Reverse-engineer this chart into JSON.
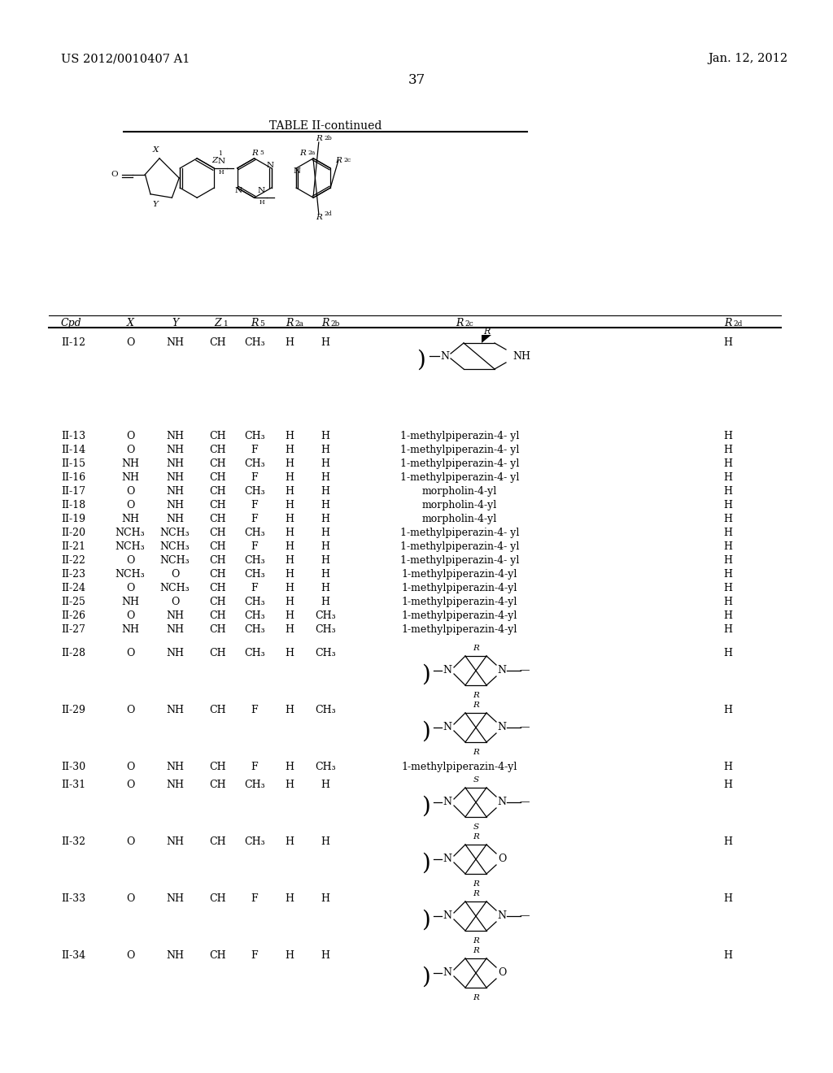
{
  "header_left": "US 2012/0010407 A1",
  "header_right": "Jan. 12, 2012",
  "page_number": "37",
  "table_title": "TABLE II-continued",
  "bg_color": "#ffffff",
  "text_color": "#000000",
  "rows_text": [
    [
      "II-13",
      "O",
      "NH",
      "CH",
      "CH₃",
      "H",
      "H",
      "1-methylpiperazin-4- yl",
      "H"
    ],
    [
      "II-14",
      "O",
      "NH",
      "CH",
      "F",
      "H",
      "H",
      "1-methylpiperazin-4- yl",
      "H"
    ],
    [
      "II-15",
      "NH",
      "NH",
      "CH",
      "CH₃",
      "H",
      "H",
      "1-methylpiperazin-4- yl",
      "H"
    ],
    [
      "II-16",
      "NH",
      "NH",
      "CH",
      "F",
      "H",
      "H",
      "1-methylpiperazin-4- yl",
      "H"
    ],
    [
      "II-17",
      "O",
      "NH",
      "CH",
      "CH₃",
      "H",
      "H",
      "morpholin-4-yl",
      "H"
    ],
    [
      "II-18",
      "O",
      "NH",
      "CH",
      "F",
      "H",
      "H",
      "morpholin-4-yl",
      "H"
    ],
    [
      "II-19",
      "NH",
      "NH",
      "CH",
      "F",
      "H",
      "H",
      "morpholin-4-yl",
      "H"
    ],
    [
      "II-20",
      "NCH₃",
      "NCH₃",
      "CH",
      "CH₃",
      "H",
      "H",
      "1-methylpiperazin-4- yl",
      "H"
    ],
    [
      "II-21",
      "NCH₃",
      "NCH₃",
      "CH",
      "F",
      "H",
      "H",
      "1-methylpiperazin-4- yl",
      "H"
    ],
    [
      "II-22",
      "O",
      "NCH₃",
      "CH",
      "CH₃",
      "H",
      "H",
      "1-methylpiperazin-4- yl",
      "H"
    ],
    [
      "II-23",
      "NCH₃",
      "O",
      "CH",
      "CH₃",
      "H",
      "H",
      "1-methylpiperazin-4-yl",
      "H"
    ],
    [
      "II-24",
      "O",
      "NCH₃",
      "CH",
      "F",
      "H",
      "H",
      "1-methylpiperazin-4-yl",
      "H"
    ],
    [
      "II-25",
      "NH",
      "O",
      "CH",
      "CH₃",
      "H",
      "H",
      "1-methylpiperazin-4-yl",
      "H"
    ],
    [
      "II-26",
      "O",
      "NH",
      "CH",
      "CH₃",
      "H",
      "CH₃",
      "1-methylpiperazin-4-yl",
      "H"
    ],
    [
      "II-27",
      "NH",
      "NH",
      "CH",
      "CH₃",
      "H",
      "CH₃",
      "1-methylpiperazin-4-yl",
      "H"
    ]
  ]
}
